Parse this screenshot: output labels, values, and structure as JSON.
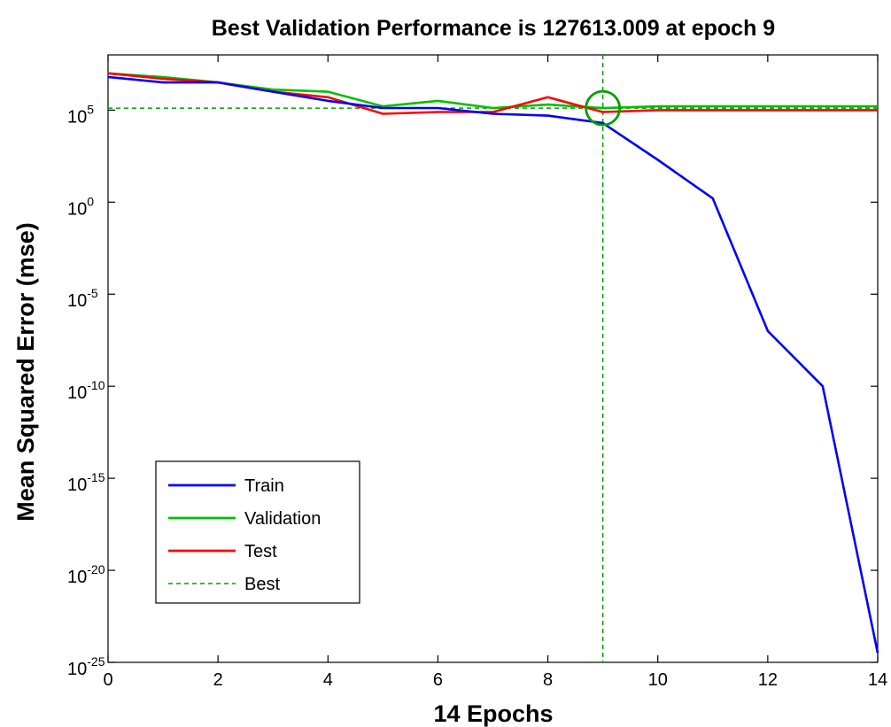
{
  "chart_data": {
    "type": "line",
    "title": "Best Validation Performance is 127613.009 at epoch 9",
    "xlabel": "14 Epochs",
    "ylabel": "Mean Squared Error  (mse)",
    "x_scale": "linear",
    "y_scale": "log",
    "xlim": [
      0,
      14
    ],
    "ylim": [
      1e-25,
      100000000.0
    ],
    "x_ticks": [
      0,
      2,
      4,
      6,
      8,
      10,
      12,
      14
    ],
    "y_ticks": [
      {
        "base": "10",
        "exp": "-25",
        "value": 1e-25
      },
      {
        "base": "10",
        "exp": "-20",
        "value": 1e-20
      },
      {
        "base": "10",
        "exp": "-15",
        "value": 1e-15
      },
      {
        "base": "10",
        "exp": "-10",
        "value": 1e-10
      },
      {
        "base": "10",
        "exp": "-5",
        "value": 1e-05
      },
      {
        "base": "10",
        "exp": "0",
        "value": 1
      },
      {
        "base": "10",
        "exp": "5",
        "value": 100000
      }
    ],
    "grid": false,
    "legend_position": "bottom-left",
    "series": [
      {
        "name": "Train",
        "color": "#0000ff",
        "style": "solid",
        "x": [
          0,
          1,
          2,
          3,
          4,
          5,
          6,
          7,
          8,
          9,
          10,
          11,
          12,
          13,
          14
        ],
        "y": [
          6300000.0,
          3200000.0,
          3200000.0,
          1000000.0,
          320000.0,
          130000.0,
          130000.0,
          63000.0,
          50000.0,
          20000.0,
          200.0,
          1.6,
          1e-07,
          1e-10,
          3.2e-25
        ]
      },
      {
        "name": "Validation",
        "color": "#00c000",
        "style": "solid",
        "x": [
          0,
          1,
          2,
          3,
          4,
          5,
          6,
          7,
          8,
          9,
          10,
          11,
          12,
          13,
          14
        ],
        "y": [
          10000000.0,
          6300000.0,
          3200000.0,
          1300000.0,
          1000000.0,
          160000.0,
          320000.0,
          130000.0,
          200000.0,
          128000.0,
          160000.0,
          160000.0,
          160000.0,
          160000.0,
          160000.0
        ]
      },
      {
        "name": "Test",
        "color": "#ff0000",
        "style": "solid",
        "x": [
          0,
          1,
          2,
          3,
          4,
          5,
          6,
          7,
          8,
          9,
          10,
          11,
          12,
          13,
          14
        ],
        "y": [
          10000000.0,
          5000000.0,
          3200000.0,
          1000000.0,
          500000.0,
          63000.0,
          79000.0,
          79000.0,
          500000.0,
          79000.0,
          100000.0,
          100000.0,
          100000.0,
          100000.0,
          100000.0
        ]
      },
      {
        "name": "Best",
        "color": "#00a000",
        "style": "dashed"
      }
    ],
    "best": {
      "epoch": 9,
      "value": 127613.009,
      "color": "#00a000"
    }
  }
}
